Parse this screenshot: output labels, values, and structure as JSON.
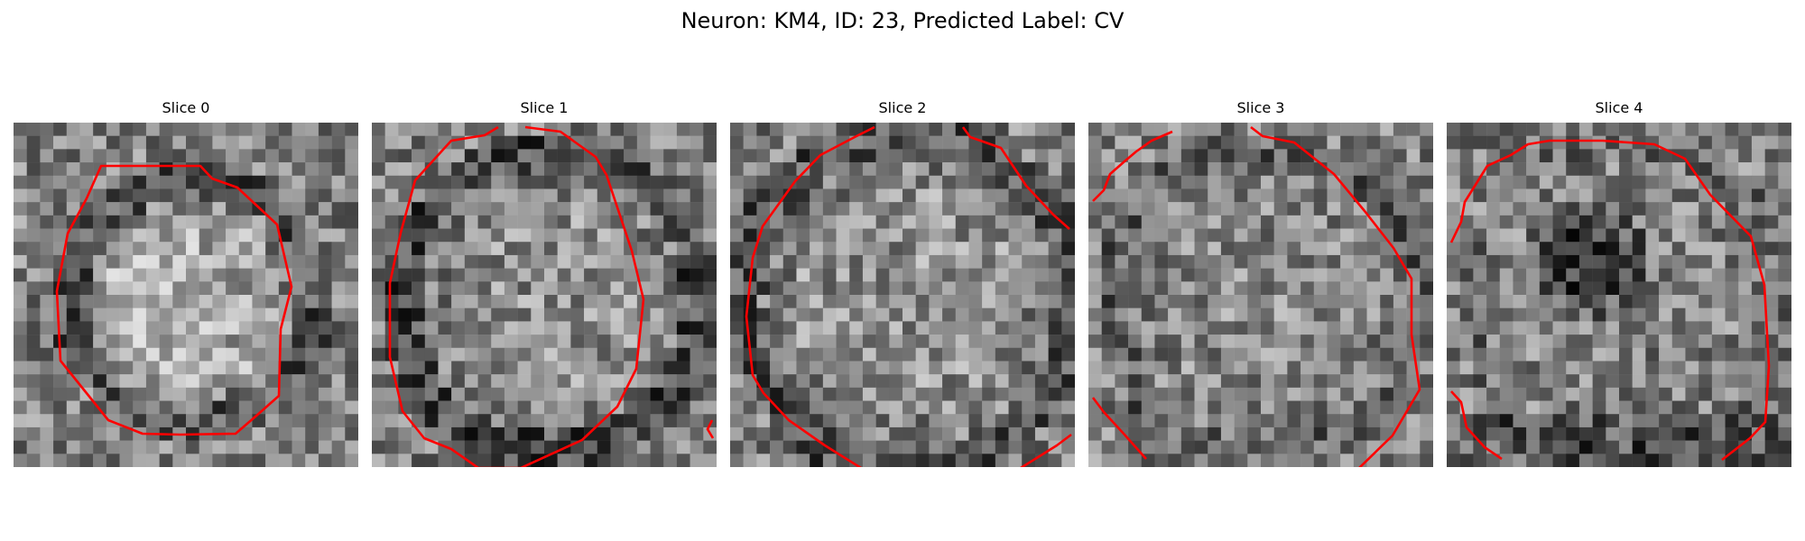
{
  "figure": {
    "title": "Neuron: KM4, ID: 23, Predicted Label: CV",
    "colormap": "gray",
    "contour_color": "#ff0000"
  },
  "slices": [
    {
      "title": "Slice 0",
      "seed": 11,
      "pattern": "bright-blob"
    },
    {
      "title": "Slice 1",
      "seed": 29,
      "pattern": "ring-dark"
    },
    {
      "title": "Slice 2",
      "seed": 47,
      "pattern": "noisy-ring"
    },
    {
      "title": "Slice 3",
      "seed": 71,
      "pattern": "faint-ring"
    },
    {
      "title": "Slice 4",
      "seed": 97,
      "pattern": "dark-center"
    }
  ]
}
